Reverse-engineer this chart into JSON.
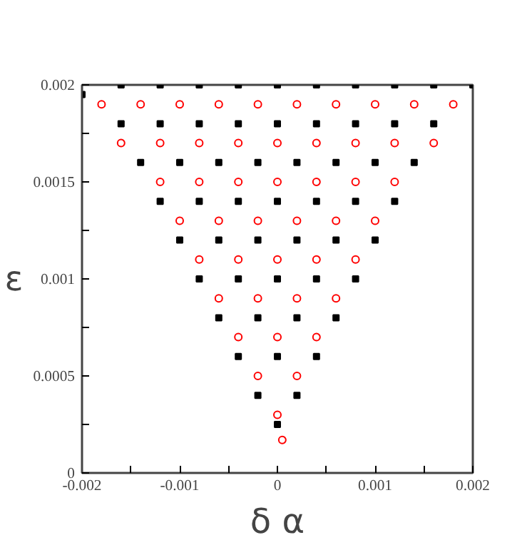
{
  "chart_data": {
    "type": "scatter",
    "xlabel": "δ α",
    "ylabel": "ε",
    "xlim": [
      -0.002,
      0.002
    ],
    "ylim": [
      0,
      0.002
    ],
    "xticks": [
      -0.002,
      {
        "value": -0.0015,
        "label": null
      },
      -0.001,
      {
        "value": -0.0005,
        "label": null
      },
      0,
      {
        "value": 0.0005,
        "label": null
      },
      0.001,
      {
        "value": 0.0015,
        "label": null
      },
      0.002
    ],
    "yticks": [
      0,
      {
        "value": 0.00025,
        "label": null
      },
      0.0005,
      {
        "value": 0.00075,
        "label": null
      },
      0.001,
      {
        "value": 0.00125,
        "label": null
      },
      0.0015,
      {
        "value": 0.00175,
        "label": null
      },
      0.002
    ],
    "grid": false,
    "series": [
      {
        "color": "#000000",
        "marker": "square",
        "x": [
          -0.002,
          -0.0016,
          -0.0012,
          -0.0008,
          -0.0004,
          0,
          0.0004,
          0.0008,
          0.0012,
          0.0016,
          0.002,
          -0.0016,
          -0.0012,
          -0.0008,
          -0.0004,
          0,
          0.0004,
          0.0008,
          0.0012,
          0.0016,
          -0.0014,
          -0.001,
          -0.0006,
          -0.0002,
          0.0002,
          0.0006,
          0.001,
          0.0014,
          -0.0012,
          -0.0008,
          -0.0004,
          0,
          0.0004,
          0.0008,
          0.0012,
          -0.001,
          -0.0006,
          -0.0002,
          0.0002,
          0.0006,
          0.001,
          -0.0008,
          -0.0004,
          0,
          0.0004,
          0.0008,
          -0.0006,
          -0.0002,
          0.0002,
          0.0006,
          -0.0004,
          0,
          0.0004,
          -0.0002,
          0.0002,
          0
        ],
        "values": [
          0.00195,
          0.002,
          0.002,
          0.002,
          0.002,
          0.002,
          0.002,
          0.002,
          0.002,
          0.002,
          0.002,
          0.0018,
          0.0018,
          0.0018,
          0.0018,
          0.0018,
          0.0018,
          0.0018,
          0.0018,
          0.0018,
          0.0016,
          0.0016,
          0.0016,
          0.0016,
          0.0016,
          0.0016,
          0.0016,
          0.0016,
          0.0014,
          0.0014,
          0.0014,
          0.0014,
          0.0014,
          0.0014,
          0.0014,
          0.0012,
          0.0012,
          0.0012,
          0.0012,
          0.0012,
          0.0012,
          0.001,
          0.001,
          0.001,
          0.001,
          0.001,
          0.0008,
          0.0008,
          0.0008,
          0.0008,
          0.0006,
          0.0006,
          0.0006,
          0.0004,
          0.0004,
          0.00025
        ]
      },
      {
        "color": "#ff0000",
        "marker": "circle",
        "x": [
          -0.0018,
          -0.0014,
          -0.001,
          -0.0006,
          -0.0002,
          0.0002,
          0.0006,
          0.001,
          0.0014,
          0.0018,
          -0.0016,
          -0.0012,
          -0.0008,
          -0.0004,
          0,
          0.0004,
          0.0008,
          0.0012,
          0.0016,
          -0.0012,
          -0.0008,
          -0.0004,
          0,
          0.0004,
          0.0008,
          0.0012,
          -0.001,
          -0.0006,
          -0.0002,
          0.0002,
          0.0006,
          0.001,
          -0.0008,
          -0.0004,
          0,
          0.0004,
          0.0008,
          -0.0006,
          -0.0002,
          0.0002,
          0.0006,
          -0.0004,
          0,
          0.0004,
          -0.0002,
          0.0002,
          0,
          5e-05
        ],
        "values": [
          0.0019,
          0.0019,
          0.0019,
          0.0019,
          0.0019,
          0.0019,
          0.0019,
          0.0019,
          0.0019,
          0.0019,
          0.0017,
          0.0017,
          0.0017,
          0.0017,
          0.0017,
          0.0017,
          0.0017,
          0.0017,
          0.0017,
          0.0015,
          0.0015,
          0.0015,
          0.0015,
          0.0015,
          0.0015,
          0.0015,
          0.0013,
          0.0013,
          0.0013,
          0.0013,
          0.0013,
          0.0013,
          0.0011,
          0.0011,
          0.0011,
          0.0011,
          0.0011,
          0.0009,
          0.0009,
          0.0009,
          0.0009,
          0.0007,
          0.0007,
          0.0007,
          0.0005,
          0.0005,
          0.0003,
          0.00017
        ]
      }
    ]
  }
}
